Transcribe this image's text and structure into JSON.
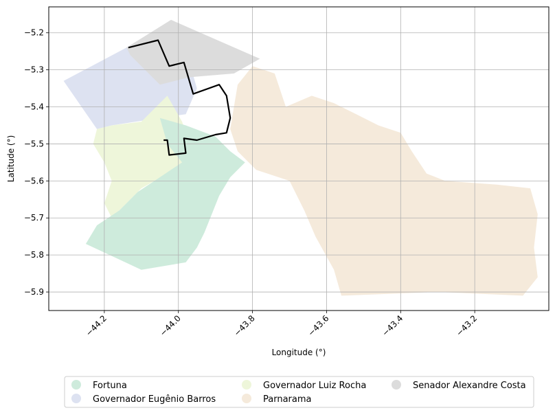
{
  "map": {
    "xlabel": "Longitude (°)",
    "ylabel": "Latitude (°)",
    "xlim": [
      -44.35,
      -43.0
    ],
    "ylim": [
      -5.95,
      -5.13
    ],
    "x_ticks": [
      {
        "value": -44.2,
        "label": "−44.2"
      },
      {
        "value": -44.0,
        "label": "−44.0"
      },
      {
        "value": -43.8,
        "label": "−43.8"
      },
      {
        "value": -43.6,
        "label": "−43.6"
      },
      {
        "value": -43.4,
        "label": "−43.4"
      },
      {
        "value": -43.2,
        "label": "−43.2"
      }
    ],
    "y_ticks": [
      {
        "value": -5.2,
        "label": "−5.2"
      },
      {
        "value": -5.3,
        "label": "−5.3"
      },
      {
        "value": -5.4,
        "label": "−5.4"
      },
      {
        "value": -5.5,
        "label": "−5.5"
      },
      {
        "value": -5.6,
        "label": "−5.6"
      },
      {
        "value": -5.7,
        "label": "−5.7"
      },
      {
        "value": -5.8,
        "label": "−5.8"
      },
      {
        "value": -5.9,
        "label": "−5.9"
      }
    ],
    "grid": true,
    "legend_position": "bottom-center",
    "regions": [
      {
        "name": "Governador Eugênio Barros",
        "color": "#dde2f1",
        "coords": [
          [
            -44.31,
            -5.33
          ],
          [
            -44.14,
            -5.24
          ],
          [
            -44.05,
            -5.22
          ],
          [
            -44.0,
            -5.27
          ],
          [
            -43.97,
            -5.28
          ],
          [
            -43.95,
            -5.35
          ],
          [
            -43.98,
            -5.42
          ],
          [
            -44.05,
            -5.43
          ],
          [
            -44.18,
            -5.45
          ],
          [
            -44.22,
            -5.46
          ]
        ]
      },
      {
        "name": "Senador Alexandre Costa",
        "color": "#dcdcdc",
        "coords": [
          [
            -44.14,
            -5.24
          ],
          [
            -44.02,
            -5.165
          ],
          [
            -43.78,
            -5.27
          ],
          [
            -43.85,
            -5.31
          ],
          [
            -43.97,
            -5.32
          ],
          [
            -44.05,
            -5.34
          ],
          [
            -44.13,
            -5.26
          ]
        ]
      },
      {
        "name": "Governador Luiz Rocha",
        "color": "#eef6da",
        "coords": [
          [
            -44.22,
            -5.46
          ],
          [
            -44.18,
            -5.45
          ],
          [
            -44.1,
            -5.44
          ],
          [
            -44.07,
            -5.41
          ],
          [
            -44.03,
            -5.37
          ],
          [
            -43.99,
            -5.44
          ],
          [
            -43.97,
            -5.5
          ],
          [
            -43.94,
            -5.55
          ],
          [
            -43.99,
            -5.55
          ],
          [
            -44.03,
            -5.58
          ],
          [
            -44.1,
            -5.62
          ],
          [
            -44.15,
            -5.67
          ],
          [
            -44.18,
            -5.7
          ],
          [
            -44.2,
            -5.66
          ],
          [
            -44.18,
            -5.6
          ],
          [
            -44.2,
            -5.55
          ],
          [
            -44.23,
            -5.5
          ]
        ]
      },
      {
        "name": "Fortuna",
        "color": "#ceebdc",
        "coords": [
          [
            -44.05,
            -5.43
          ],
          [
            -43.98,
            -5.45
          ],
          [
            -43.9,
            -5.48
          ],
          [
            -43.86,
            -5.52
          ],
          [
            -43.82,
            -5.55
          ],
          [
            -43.86,
            -5.59
          ],
          [
            -43.89,
            -5.64
          ],
          [
            -43.91,
            -5.69
          ],
          [
            -43.93,
            -5.74
          ],
          [
            -43.95,
            -5.78
          ],
          [
            -43.98,
            -5.82
          ],
          [
            -44.1,
            -5.84
          ],
          [
            -44.25,
            -5.77
          ],
          [
            -44.22,
            -5.72
          ],
          [
            -44.16,
            -5.68
          ],
          [
            -44.11,
            -5.63
          ],
          [
            -44.05,
            -5.59
          ],
          [
            -43.99,
            -5.55
          ],
          [
            -44.03,
            -5.5
          ]
        ]
      },
      {
        "name": "Parnarama",
        "color": "#f5eadb",
        "coords": [
          [
            -43.84,
            -5.34
          ],
          [
            -43.8,
            -5.29
          ],
          [
            -43.74,
            -5.31
          ],
          [
            -43.71,
            -5.4
          ],
          [
            -43.64,
            -5.37
          ],
          [
            -43.58,
            -5.39
          ],
          [
            -43.52,
            -5.42
          ],
          [
            -43.46,
            -5.45
          ],
          [
            -43.4,
            -5.47
          ],
          [
            -43.37,
            -5.52
          ],
          [
            -43.33,
            -5.58
          ],
          [
            -43.28,
            -5.6
          ],
          [
            -43.14,
            -5.61
          ],
          [
            -43.05,
            -5.62
          ],
          [
            -43.03,
            -5.69
          ],
          [
            -43.04,
            -5.78
          ],
          [
            -43.03,
            -5.86
          ],
          [
            -43.07,
            -5.91
          ],
          [
            -43.3,
            -5.9
          ],
          [
            -43.56,
            -5.91
          ],
          [
            -43.58,
            -5.84
          ],
          [
            -43.63,
            -5.75
          ],
          [
            -43.66,
            -5.68
          ],
          [
            -43.7,
            -5.6
          ],
          [
            -43.79,
            -5.57
          ],
          [
            -43.84,
            -5.52
          ],
          [
            -43.86,
            -5.46
          ]
        ]
      }
    ],
    "outline": {
      "color": "#000000",
      "coords": [
        [
          -44.135,
          -5.24
        ],
        [
          -44.055,
          -5.22
        ],
        [
          -44.025,
          -5.29
        ],
        [
          -43.985,
          -5.28
        ],
        [
          -43.96,
          -5.365
        ],
        [
          -43.89,
          -5.34
        ],
        [
          -43.87,
          -5.37
        ],
        [
          -43.86,
          -5.43
        ],
        [
          -43.87,
          -5.47
        ],
        [
          -43.9,
          -5.475
        ],
        [
          -43.95,
          -5.49
        ],
        [
          -43.985,
          -5.485
        ],
        [
          -43.98,
          -5.525
        ],
        [
          -44.025,
          -5.53
        ],
        [
          -44.03,
          -5.49
        ],
        [
          -44.04,
          -5.49
        ]
      ]
    },
    "legend": [
      {
        "label": "Fortuna",
        "color": "#ceebdc"
      },
      {
        "label": "Governador Eugênio Barros",
        "color": "#dde2f1"
      },
      {
        "label": "Governador Luiz Rocha",
        "color": "#eef6da"
      },
      {
        "label": "Parnarama",
        "color": "#f5eadb"
      },
      {
        "label": "Senador Alexandre Costa",
        "color": "#dcdcdc"
      }
    ]
  }
}
